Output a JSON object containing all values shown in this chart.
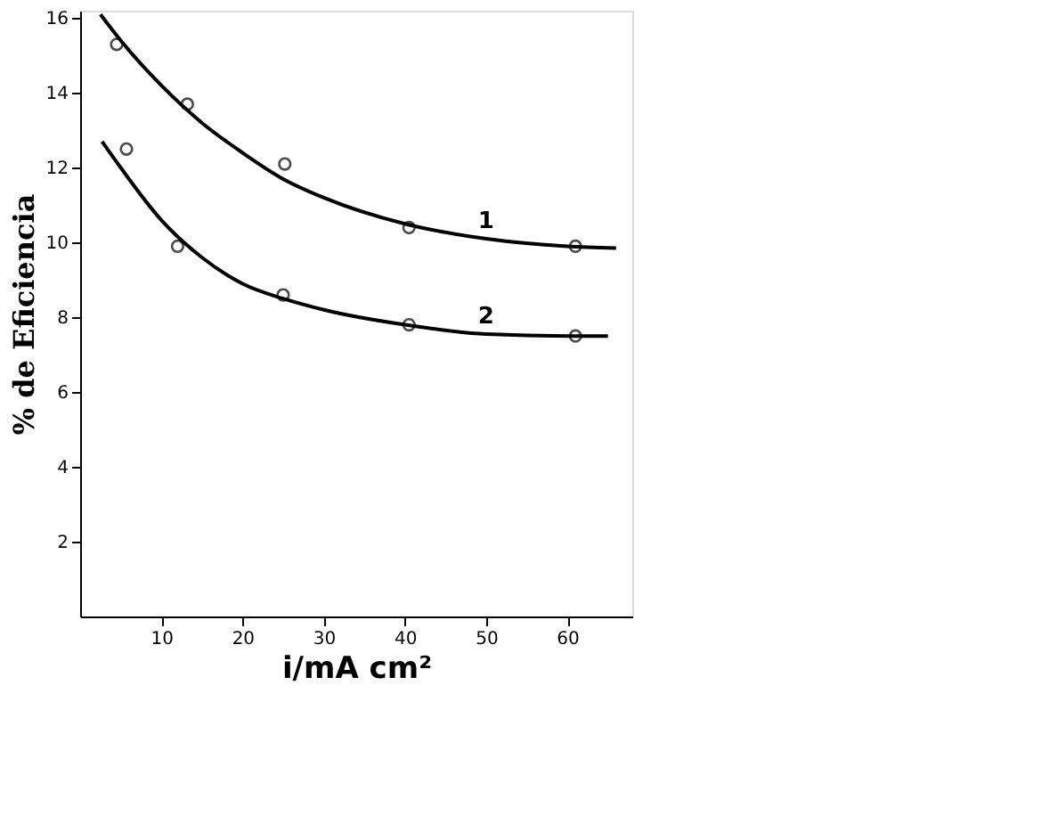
{
  "chart_data": {
    "type": "scatter",
    "xlabel": "i/mA cm²",
    "ylabel": "% de Eficiencia",
    "xlim": [
      0,
      68
    ],
    "ylim": [
      0,
      16.2
    ],
    "xticks": [
      10,
      20,
      30,
      40,
      50,
      60
    ],
    "yticks": [
      2,
      4,
      6,
      8,
      10,
      12,
      14,
      16
    ],
    "grid": false,
    "marker": "circle",
    "series": [
      {
        "color": "#000000",
        "x": [
          4.5,
          13.2,
          25.2,
          40.5,
          61
        ],
        "values": [
          15.3,
          13.7,
          12.1,
          10.4,
          9.9
        ]
      },
      {
        "color": "#000000",
        "x": [
          5.7,
          12,
          25,
          40.5,
          61
        ],
        "values": [
          12.5,
          9.9,
          8.6,
          7.8,
          7.5
        ]
      },
      {
        "type": "line",
        "name": "1",
        "marker": "none",
        "color": "#000000",
        "line_style": "solid",
        "x": [
          2.5,
          5,
          10,
          15,
          20,
          25,
          30,
          40,
          50,
          60,
          66
        ],
        "values": [
          16.1,
          15.4,
          14.2,
          13.2,
          12.4,
          11.7,
          11.2,
          10.5,
          10.1,
          9.9,
          9.85
        ]
      },
      {
        "type": "line",
        "name": "2",
        "marker": "none",
        "color": "#000000",
        "line_style": "solid",
        "x": [
          2.7,
          5,
          10,
          15,
          20,
          25,
          30,
          40,
          50,
          60,
          65
        ],
        "values": [
          12.7,
          12.0,
          10.6,
          9.6,
          8.9,
          8.5,
          8.2,
          7.8,
          7.55,
          7.5,
          7.5
        ]
      }
    ]
  }
}
